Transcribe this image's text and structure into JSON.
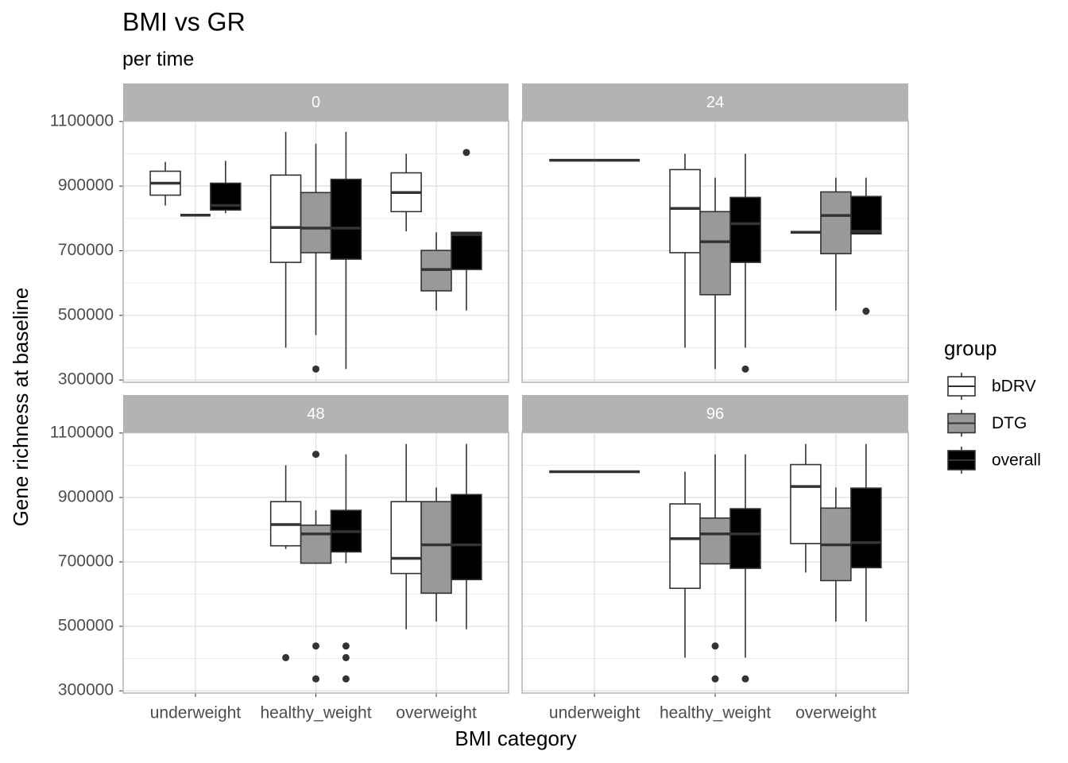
{
  "chart_data": {
    "type": "box",
    "title": "BMI vs GR",
    "subtitle": "per time",
    "x_label": "BMI category",
    "y_label": "Gene richness at baseline",
    "legend_title": "group",
    "legend_position": "right",
    "categories": [
      "underweight",
      "healthy_weight",
      "overweight"
    ],
    "series": [
      {
        "name": "bDRV",
        "color": "#ffffff"
      },
      {
        "name": "DTG",
        "color": "#999999"
      },
      {
        "name": "overall",
        "color": "#000000"
      }
    ],
    "ylim": [
      293000,
      1102000
    ],
    "yticks": [
      300000,
      500000,
      700000,
      900000,
      1100000
    ],
    "minor_yticks": [
      400000,
      600000,
      800000,
      1000000
    ],
    "grid": true,
    "facets": [
      {
        "label": "0",
        "boxes": [
          [
            {
              "low": 840000,
              "q1": 872000,
              "median": 909000,
              "q3": 946000,
              "high": 975000
            },
            {
              "low": 810000,
              "q1": 810000,
              "median": 810000,
              "q3": 810000,
              "high": 810000
            },
            {
              "low": 816000,
              "q1": 826000,
              "median": 840000,
              "q3": 909000,
              "high": 978000
            }
          ],
          [
            {
              "low": 400000,
              "q1": 664000,
              "median": 772000,
              "q3": 934000,
              "high": 1068000
            },
            {
              "low": 439000,
              "q1": 694000,
              "median": 770000,
              "q3": 880000,
              "high": 1031000,
              "outliers": [
                334000
              ]
            },
            {
              "low": 334000,
              "q1": 674000,
              "median": 770000,
              "q3": 921000,
              "high": 1068000
            }
          ],
          [
            {
              "low": 760000,
              "q1": 821000,
              "median": 880000,
              "q3": 941000,
              "high": 1000000
            },
            {
              "low": 515000,
              "q1": 576000,
              "median": 642000,
              "q3": 701000,
              "high": 757000
            },
            {
              "low": 515000,
              "q1": 642000,
              "median": 750000,
              "q3": 757000,
              "high": 757000,
              "outliers": [
                1004000
              ]
            }
          ]
        ]
      },
      {
        "label": "24",
        "boxes": [
          [
            {
              "low": 980000,
              "q1": 980000,
              "median": 980000,
              "q3": 980000,
              "high": 980000
            },
            {
              "low": 980000,
              "q1": 980000,
              "median": 980000,
              "q3": 980000,
              "high": 980000
            },
            null
          ],
          [
            {
              "low": 400000,
              "q1": 694000,
              "median": 831000,
              "q3": 951000,
              "high": 1000000
            },
            {
              "low": 334000,
              "q1": 564000,
              "median": 728000,
              "q3": 821000,
              "high": 926000
            },
            {
              "low": 400000,
              "q1": 664000,
              "median": 784000,
              "q3": 865000,
              "high": 1000000,
              "outliers": [
                334000
              ]
            }
          ],
          [
            {
              "low": 757000,
              "q1": 757000,
              "median": 757000,
              "q3": 757000,
              "high": 757000
            },
            {
              "low": 515000,
              "q1": 691000,
              "median": 809000,
              "q3": 882000,
              "high": 926000
            },
            {
              "low": 752000,
              "q1": 752000,
              "median": 760000,
              "q3": 868000,
              "high": 926000,
              "outliers": [
                513000
              ]
            }
          ]
        ]
      },
      {
        "label": "48",
        "boxes": [
          [
            null,
            null,
            null
          ],
          [
            {
              "low": 740000,
              "q1": 750000,
              "median": 816000,
              "q3": 887000,
              "high": 1000000,
              "outliers": [
                403000
              ]
            },
            {
              "low": 696000,
              "q1": 696000,
              "median": 787000,
              "q3": 814000,
              "high": 860000,
              "outliers": [
                1034000,
                439000,
                337000
              ]
            },
            {
              "low": 696000,
              "q1": 731000,
              "median": 794000,
              "q3": 860000,
              "high": 1034000,
              "outliers": [
                439000,
                403000,
                337000
              ]
            }
          ],
          [
            {
              "low": 491000,
              "q1": 664000,
              "median": 711000,
              "q3": 887000,
              "high": 1066000
            },
            {
              "low": 515000,
              "q1": 603000,
              "median": 753000,
              "q3": 887000,
              "high": 931000
            },
            {
              "low": 491000,
              "q1": 645000,
              "median": 753000,
              "q3": 909000,
              "high": 1066000
            }
          ]
        ]
      },
      {
        "label": "96",
        "boxes": [
          [
            {
              "low": 980000,
              "q1": 980000,
              "median": 980000,
              "q3": 980000,
              "high": 980000
            },
            {
              "low": 980000,
              "q1": 980000,
              "median": 980000,
              "q3": 980000,
              "high": 980000
            },
            null
          ],
          [
            {
              "low": 403000,
              "q1": 618000,
              "median": 772000,
              "q3": 880000,
              "high": 980000
            },
            {
              "low": 694000,
              "q1": 694000,
              "median": 787000,
              "q3": 836000,
              "high": 1034000,
              "outliers": [
                439000,
                337000
              ]
            },
            {
              "low": 403000,
              "q1": 680000,
              "median": 787000,
              "q3": 865000,
              "high": 1034000,
              "outliers": [
                337000
              ]
            }
          ],
          [
            {
              "low": 667000,
              "q1": 757000,
              "median": 934000,
              "q3": 1002000,
              "high": 1066000
            },
            {
              "low": 515000,
              "q1": 642000,
              "median": 753000,
              "q3": 867000,
              "high": 931000
            },
            {
              "low": 515000,
              "q1": 682000,
              "median": 760000,
              "q3": 929000,
              "high": 1066000
            }
          ]
        ]
      }
    ]
  }
}
